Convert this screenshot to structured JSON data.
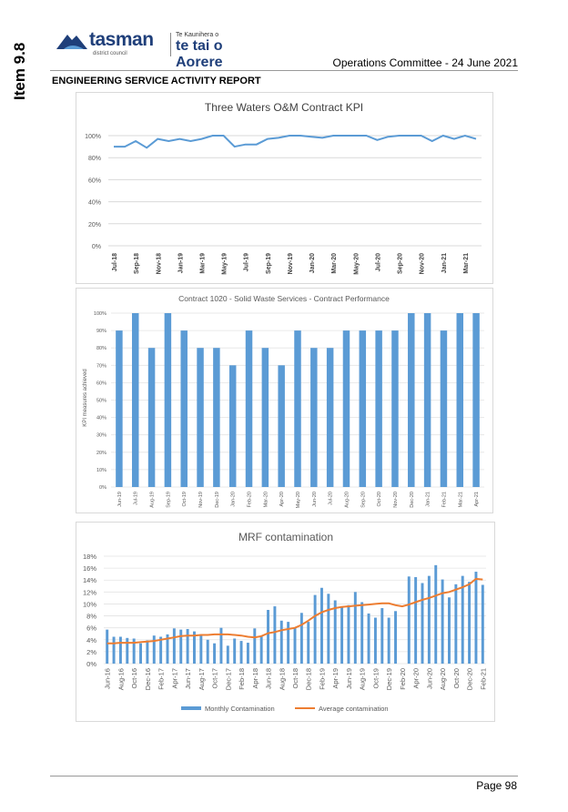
{
  "side_label": "Item 9.8",
  "logo": {
    "name": "tasman",
    "subtitle": "district council",
    "maori_small": "Te Kaunihera o",
    "maori": "te tai o Aorere"
  },
  "header": {
    "meeting": "Operations Committee - 24 June 2021"
  },
  "section_title": "ENGINEERING SERVICE ACTIVITY REPORT",
  "footer": {
    "page": "Page 98"
  },
  "colors": {
    "line_blue": "#5b9bd5",
    "bar_blue": "#5b9bd5",
    "avg_orange": "#ed7d31",
    "grid": "#d9d9d9",
    "logo_blue": "#1f3f7a"
  },
  "chart_data": [
    {
      "type": "line",
      "title": "Three Waters O&M Contract KPI",
      "ylim": [
        0,
        100
      ],
      "yticks": [
        "0%",
        "20%",
        "40%",
        "60%",
        "80%",
        "100%"
      ],
      "x_labels": [
        "Jul-18",
        "Sep-18",
        "Nov-18",
        "Jan-19",
        "Mar-19",
        "May-19",
        "Jul-19",
        "Sep-19",
        "Nov-19",
        "Jan-20",
        "Mar-20",
        "May-20",
        "Jul-20",
        "Sep-20",
        "Nov-20",
        "Jan-21",
        "Mar-21"
      ],
      "values": [
        90,
        90,
        95,
        89,
        97,
        95,
        97,
        95,
        97,
        100,
        100,
        90,
        92,
        92,
        97,
        98,
        100,
        100,
        99,
        98,
        100,
        100,
        100,
        100,
        96,
        99,
        100,
        100,
        100,
        95,
        100,
        97,
        100,
        97
      ]
    },
    {
      "type": "bar",
      "title": "Contract 1020 - Solid Waste Services - Contract Performance",
      "ylabel": "KPI measures achieved",
      "ylim": [
        0,
        100
      ],
      "yticks": [
        "0%",
        "10%",
        "20%",
        "30%",
        "40%",
        "50%",
        "60%",
        "70%",
        "80%",
        "90%",
        "100%"
      ],
      "categories": [
        "Jun-19",
        "Jul-19",
        "Aug-19",
        "Sep-19",
        "Oct-19",
        "Nov-19",
        "Dec-19",
        "Jan-20",
        "Feb-20",
        "Mar-20",
        "Apr-20",
        "May-20",
        "Jun-20",
        "Jul-20",
        "Aug-20",
        "Sep-20",
        "Oct-20",
        "Nov-20",
        "Dec-20",
        "Jan-21",
        "Feb-21",
        "Mar-21",
        "Apr-21"
      ],
      "values": [
        90,
        100,
        80,
        100,
        90,
        80,
        80,
        70,
        90,
        80,
        70,
        90,
        80,
        80,
        90,
        90,
        90,
        90,
        100,
        100,
        90,
        100,
        100
      ]
    },
    {
      "type": "bar+line",
      "title": "MRF contamination",
      "ylim": [
        0,
        18
      ],
      "yticks": [
        "0%",
        "2%",
        "4%",
        "6%",
        "8%",
        "10%",
        "12%",
        "14%",
        "16%",
        "18%"
      ],
      "x_labels": [
        "Jun-16",
        "Aug-16",
        "Oct-16",
        "Dec-16",
        "Feb-17",
        "Apr-17",
        "Jun-17",
        "Aug-17",
        "Oct-17",
        "Dec-17",
        "Feb-18",
        "Apr-18",
        "Jun-18",
        "Aug-18",
        "Oct-18",
        "Dec-18",
        "Feb-19",
        "Apr-19",
        "Jun-19",
        "Aug-19",
        "Oct-19",
        "Dec-19",
        "Feb-20",
        "Apr-20",
        "Jun-20",
        "Aug-20",
        "Oct-20",
        "Dec-20",
        "Feb-21",
        "Apr-21"
      ],
      "legend": [
        "Monthly Contamination",
        "Average contamination"
      ],
      "monthly": [
        5.7,
        4.5,
        4.5,
        4.3,
        4.2,
        3.4,
        3.9,
        4.7,
        4.5,
        4.9,
        5.9,
        5.7,
        5.8,
        5.4,
        4.7,
        4.0,
        3.4,
        6.0,
        3.0,
        4.2,
        3.8,
        3.5,
        5.9,
        4.6,
        9.0,
        9.6,
        7.2,
        7.0,
        6.0,
        8.5,
        7.0,
        11.5,
        12.7,
        11.7,
        10.6,
        9.5,
        9.8,
        12.0,
        10.3,
        8.4,
        7.7,
        9.3,
        7.7,
        8.8,
        0,
        14.6,
        14.5,
        13.5,
        14.7,
        16.5,
        14.1,
        11.1,
        13.3,
        14.7,
        13.7,
        15.4,
        13.2
      ],
      "average": [
        3.4,
        3.4,
        3.5,
        3.5,
        3.5,
        3.6,
        3.7,
        3.8,
        4.0,
        4.2,
        4.4,
        4.6,
        4.7,
        4.7,
        4.8,
        4.8,
        4.9,
        4.9,
        4.9,
        4.8,
        4.7,
        4.5,
        4.4,
        4.6,
        5.1,
        5.3,
        5.6,
        5.8,
        6.0,
        6.5,
        7.2,
        8.0,
        8.6,
        9.0,
        9.3,
        9.5,
        9.6,
        9.7,
        9.8,
        9.9,
        10.0,
        10.1,
        10.1,
        9.8,
        9.6,
        9.9,
        10.3,
        10.7,
        11.0,
        11.4,
        11.8,
        12.0,
        12.4,
        12.8,
        13.3,
        14.2,
        14.1
      ]
    }
  ]
}
